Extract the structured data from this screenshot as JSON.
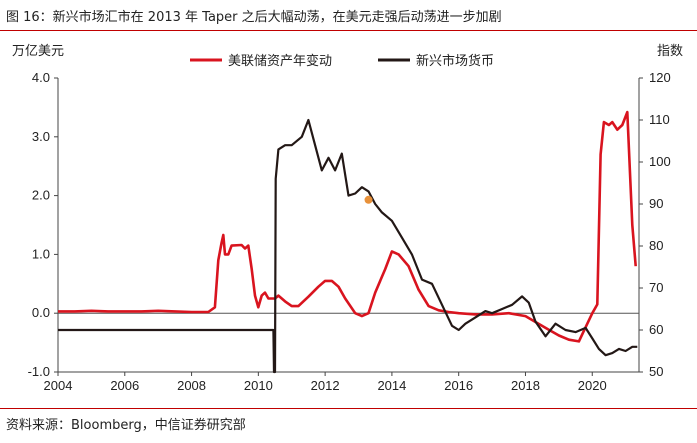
{
  "figure": {
    "title": "图 16：新兴市场汇市在 2013 年 Taper 之后大幅动荡，在美元走强后动荡进一步加剧",
    "left_unit": "万亿美元",
    "right_unit": "指数",
    "source": "资料来源：Bloomberg，中信证券研究部"
  },
  "colors": {
    "accent": "#c00000",
    "series_red": "#d9141f",
    "series_black": "#231816",
    "marker": "#e8913a"
  },
  "chart_data": {
    "type": "line",
    "title": "图 16：新兴市场汇市在 2013 年 Taper 之后大幅动荡，在美元走强后动荡进一步加剧",
    "x_ticks": [
      "2004",
      "2006",
      "2008",
      "2010",
      "2012",
      "2014",
      "2016",
      "2018",
      "2020"
    ],
    "xlim": [
      2004,
      2021.4
    ],
    "y_left": {
      "label": "万亿美元",
      "lim": [
        -1.0,
        4.0
      ],
      "ticks": [
        "-1.0",
        "0.0",
        "1.0",
        "2.0",
        "3.0",
        "4.0"
      ]
    },
    "y_right": {
      "label": "指数",
      "lim": [
        50,
        120
      ],
      "ticks": [
        "50",
        "60",
        "70",
        "80",
        "90",
        "100",
        "110",
        "120"
      ]
    },
    "legend_position": "top",
    "grid": false,
    "series": [
      {
        "name": "美联储资产年变动",
        "axis": "left",
        "points": [
          [
            2004.0,
            0.03
          ],
          [
            2004.5,
            0.03
          ],
          [
            2005.0,
            0.04
          ],
          [
            2005.5,
            0.03
          ],
          [
            2006.0,
            0.03
          ],
          [
            2006.5,
            0.03
          ],
          [
            2007.0,
            0.04
          ],
          [
            2007.5,
            0.03
          ],
          [
            2008.0,
            0.02
          ],
          [
            2008.5,
            0.02
          ],
          [
            2008.7,
            0.1
          ],
          [
            2008.8,
            0.9
          ],
          [
            2008.9,
            1.2
          ],
          [
            2008.95,
            1.33
          ],
          [
            2009.0,
            1.0
          ],
          [
            2009.1,
            1.0
          ],
          [
            2009.2,
            1.15
          ],
          [
            2009.5,
            1.16
          ],
          [
            2009.6,
            1.1
          ],
          [
            2009.7,
            1.15
          ],
          [
            2009.8,
            0.75
          ],
          [
            2009.9,
            0.3
          ],
          [
            2010.0,
            0.1
          ],
          [
            2010.1,
            0.3
          ],
          [
            2010.2,
            0.35
          ],
          [
            2010.3,
            0.25
          ],
          [
            2010.5,
            0.25
          ],
          [
            2010.6,
            0.3
          ],
          [
            2010.8,
            0.2
          ],
          [
            2011.0,
            0.12
          ],
          [
            2011.2,
            0.12
          ],
          [
            2011.5,
            0.28
          ],
          [
            2011.8,
            0.45
          ],
          [
            2012.0,
            0.55
          ],
          [
            2012.2,
            0.55
          ],
          [
            2012.4,
            0.45
          ],
          [
            2012.6,
            0.25
          ],
          [
            2012.9,
            0.0
          ],
          [
            2013.1,
            -0.05
          ],
          [
            2013.3,
            0.0
          ],
          [
            2013.5,
            0.35
          ],
          [
            2013.8,
            0.75
          ],
          [
            2014.0,
            1.05
          ],
          [
            2014.2,
            1.0
          ],
          [
            2014.5,
            0.8
          ],
          [
            2014.8,
            0.4
          ],
          [
            2015.1,
            0.12
          ],
          [
            2015.4,
            0.05
          ],
          [
            2015.7,
            0.02
          ],
          [
            2016.0,
            0.0
          ],
          [
            2016.5,
            -0.02
          ],
          [
            2017.0,
            -0.02
          ],
          [
            2017.5,
            0.0
          ],
          [
            2018.0,
            -0.05
          ],
          [
            2018.3,
            -0.15
          ],
          [
            2018.7,
            -0.28
          ],
          [
            2019.0,
            -0.38
          ],
          [
            2019.3,
            -0.45
          ],
          [
            2019.6,
            -0.48
          ],
          [
            2019.75,
            -0.3
          ],
          [
            2020.0,
            0.0
          ],
          [
            2020.15,
            0.15
          ],
          [
            2020.25,
            2.7
          ],
          [
            2020.35,
            3.25
          ],
          [
            2020.5,
            3.2
          ],
          [
            2020.6,
            3.25
          ],
          [
            2020.75,
            3.12
          ],
          [
            2020.9,
            3.2
          ],
          [
            2021.05,
            3.42
          ],
          [
            2021.2,
            1.5
          ],
          [
            2021.3,
            0.8
          ]
        ]
      },
      {
        "name": "新兴市场货币",
        "axis": "right",
        "points": [
          [
            2004.0,
            60.0
          ],
          [
            2008.5,
            60.0
          ],
          [
            2010.0,
            60.0
          ],
          [
            2010.45,
            60.0
          ],
          [
            2010.47,
            50.0
          ],
          [
            2010.5,
            50.0
          ],
          [
            2010.52,
            96.0
          ],
          [
            2010.6,
            103.0
          ],
          [
            2010.8,
            104.0
          ],
          [
            2011.0,
            104.0
          ],
          [
            2011.3,
            106.0
          ],
          [
            2011.5,
            110.0
          ],
          [
            2011.7,
            104.0
          ],
          [
            2011.9,
            98.0
          ],
          [
            2012.1,
            101.0
          ],
          [
            2012.3,
            98.0
          ],
          [
            2012.5,
            102.0
          ],
          [
            2012.7,
            92.0
          ],
          [
            2012.9,
            92.5
          ],
          [
            2013.1,
            94.0
          ],
          [
            2013.3,
            93.0
          ],
          [
            2013.5,
            90.0
          ],
          [
            2013.7,
            88.0
          ],
          [
            2014.0,
            86.0
          ],
          [
            2014.3,
            82.0
          ],
          [
            2014.6,
            78.0
          ],
          [
            2014.9,
            72.0
          ],
          [
            2015.2,
            71.0
          ],
          [
            2015.5,
            66.0
          ],
          [
            2015.8,
            61.0
          ],
          [
            2016.0,
            60.0
          ],
          [
            2016.2,
            61.5
          ],
          [
            2016.5,
            63.0
          ],
          [
            2016.8,
            64.5
          ],
          [
            2017.0,
            64.0
          ],
          [
            2017.3,
            65.0
          ],
          [
            2017.6,
            66.0
          ],
          [
            2017.9,
            68.0
          ],
          [
            2018.1,
            66.5
          ],
          [
            2018.3,
            62.0
          ],
          [
            2018.6,
            58.5
          ],
          [
            2018.9,
            61.5
          ],
          [
            2019.2,
            60.0
          ],
          [
            2019.5,
            59.5
          ],
          [
            2019.8,
            60.5
          ],
          [
            2020.0,
            58.0
          ],
          [
            2020.2,
            55.5
          ],
          [
            2020.4,
            54.0
          ],
          [
            2020.6,
            54.5
          ],
          [
            2020.8,
            55.5
          ],
          [
            2021.0,
            55.0
          ],
          [
            2021.2,
            56.0
          ],
          [
            2021.35,
            56.0
          ]
        ]
      }
    ],
    "marker": {
      "x": 2013.3,
      "y_right": 91.0
    }
  }
}
